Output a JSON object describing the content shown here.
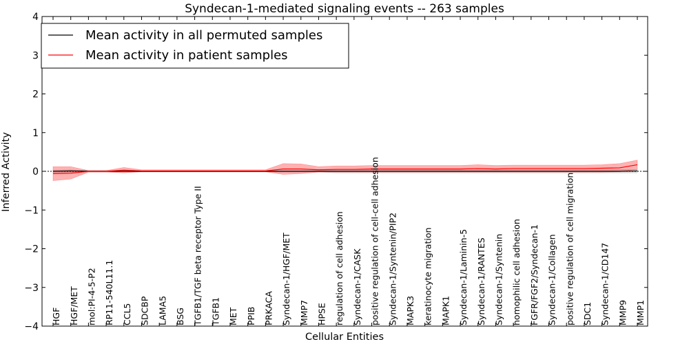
{
  "chart_data": {
    "type": "line",
    "title": "Syndecan-1-mediated signaling events -- 263 samples",
    "xlabel": "Cellular Entities",
    "ylabel": "Inferred Activity",
    "ylim": [
      -4,
      4
    ],
    "yticks": [
      -4,
      -3,
      -2,
      -1,
      0,
      1,
      2,
      3,
      4
    ],
    "ytick_labels": [
      "−4",
      "−3",
      "−2",
      "−1",
      "0",
      "1",
      "2",
      "3",
      "4"
    ],
    "grid": false,
    "legend_position": "top-left",
    "categories": [
      "HGF",
      "HGF/MET",
      "mol:PI-4-5-P2",
      "RP11-540L11.1",
      "CCL5",
      "SDCBP",
      "LAMA5",
      "BSG",
      "TGFB1/TGF beta receptor Type II",
      "TGFB1",
      "MET",
      "PPIB",
      "PRKACA",
      "Syndecan-1/HGF/MET",
      "MMP7",
      "HPSE",
      "regulation of cell adhesion",
      "Syndecan-1/CASK",
      "positive regulation of cell-cell adhesion",
      "Syndecan-1/Syntenin/PIP2",
      "MAPK3",
      "keratinocyte migration",
      "MAPK1",
      "Syndecan-1/Laminin-5",
      "Syndecan-1/RANTES",
      "Syndecan-1/Syntenin",
      "homophilic cell adhesion",
      "FGFR/FGF2/Syndecan-1",
      "Syndecan-1/Collagen",
      "positive regulation of cell migration",
      "SDC1",
      "Syndecan-1/CD147",
      "MMP9",
      "MMP1"
    ],
    "series": [
      {
        "name": "Mean activity in all permuted samples",
        "color": "#000000",
        "values": [
          0.0,
          0.01,
          0.0,
          0.0,
          0.0,
          0.0,
          0.0,
          0.0,
          0.0,
          0.0,
          0.0,
          0.0,
          0.0,
          0.0,
          0.0,
          0.0,
          0.0,
          0.0,
          0.0,
          0.0,
          0.0,
          0.0,
          0.0,
          0.0,
          0.0,
          0.0,
          0.0,
          0.0,
          0.0,
          0.0,
          0.0,
          0.0,
          0.0,
          0.01
        ],
        "band_low": [
          -0.03,
          -0.03,
          -0.02,
          -0.02,
          -0.02,
          -0.02,
          -0.02,
          -0.02,
          -0.02,
          -0.02,
          -0.02,
          -0.02,
          -0.02,
          -0.02,
          -0.02,
          -0.02,
          -0.04,
          -0.04,
          -0.04,
          -0.04,
          -0.04,
          -0.04,
          -0.04,
          -0.04,
          -0.04,
          -0.04,
          -0.04,
          -0.04,
          -0.04,
          -0.04,
          -0.04,
          -0.04,
          -0.04,
          -0.04
        ],
        "band_high": [
          0.03,
          0.04,
          0.02,
          0.02,
          0.02,
          0.02,
          0.02,
          0.02,
          0.02,
          0.02,
          0.02,
          0.02,
          0.02,
          0.02,
          0.02,
          0.02,
          0.04,
          0.04,
          0.04,
          0.04,
          0.04,
          0.04,
          0.04,
          0.04,
          0.04,
          0.04,
          0.04,
          0.04,
          0.04,
          0.04,
          0.04,
          0.04,
          0.05,
          0.05
        ],
        "band_color": "#b0b0b0"
      },
      {
        "name": "Mean activity in patient samples",
        "color": "#ff0000",
        "values": [
          -0.06,
          -0.05,
          0.0,
          0.0,
          0.03,
          0.01,
          0.01,
          0.01,
          0.01,
          0.01,
          0.01,
          0.01,
          0.01,
          0.06,
          0.06,
          0.04,
          0.05,
          0.05,
          0.06,
          0.06,
          0.06,
          0.06,
          0.06,
          0.06,
          0.07,
          0.06,
          0.07,
          0.07,
          0.07,
          0.07,
          0.07,
          0.08,
          0.09,
          0.17
        ],
        "band_low": [
          -0.24,
          -0.2,
          -0.02,
          -0.02,
          -0.04,
          -0.01,
          -0.01,
          -0.01,
          -0.01,
          -0.01,
          -0.01,
          -0.01,
          -0.01,
          -0.08,
          -0.06,
          -0.02,
          -0.02,
          -0.02,
          -0.02,
          -0.02,
          -0.02,
          -0.02,
          -0.02,
          -0.02,
          -0.02,
          -0.02,
          -0.02,
          -0.02,
          -0.02,
          -0.02,
          -0.02,
          -0.02,
          -0.01,
          0.05
        ],
        "band_high": [
          0.12,
          0.12,
          0.02,
          0.02,
          0.1,
          0.04,
          0.04,
          0.04,
          0.04,
          0.04,
          0.04,
          0.04,
          0.04,
          0.2,
          0.19,
          0.12,
          0.14,
          0.14,
          0.15,
          0.15,
          0.15,
          0.15,
          0.15,
          0.15,
          0.17,
          0.15,
          0.16,
          0.16,
          0.16,
          0.16,
          0.16,
          0.17,
          0.2,
          0.29
        ],
        "band_color": "#ff0000"
      }
    ],
    "zero_reference_line": 0
  }
}
